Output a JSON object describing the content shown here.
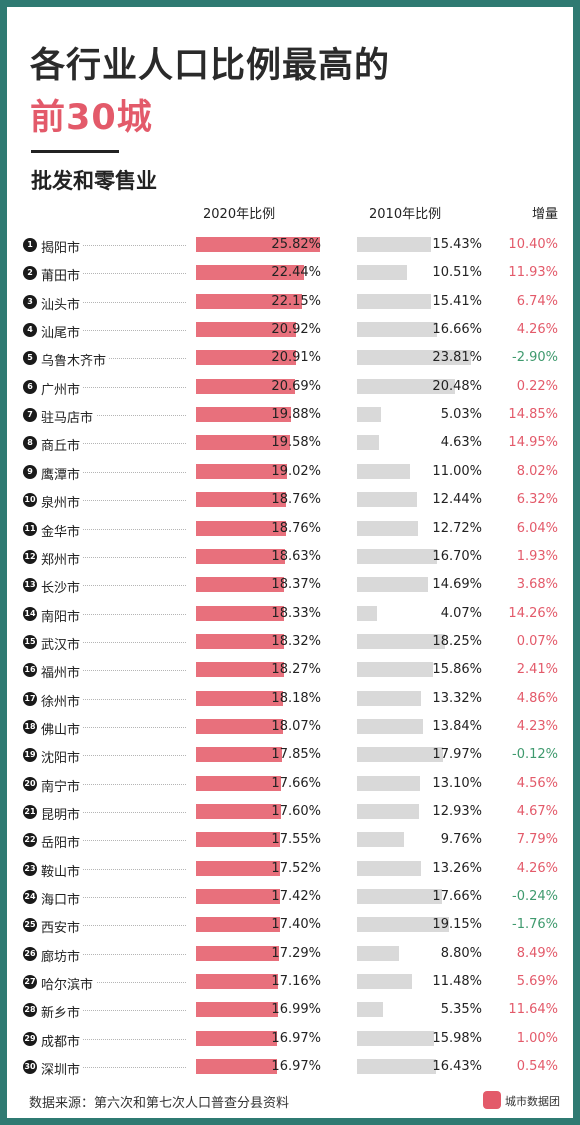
{
  "header": {
    "title_line1": "各行业人口比例最高的",
    "title_line2": "前30城",
    "subtitle": "批发和零售业"
  },
  "columns": {
    "col2020": "2020年比例",
    "col2010": "2010年比例",
    "increase": "增量"
  },
  "colors": {
    "bar2020": "#e8707c",
    "bar2010": "#d9d9d9",
    "positive": "#e35a6a",
    "negative": "#3f9a6e",
    "frame": "#2f7a72"
  },
  "footer": {
    "source": "数据来源：第六次和第七次人口普查分县资料",
    "brand": "城市数据团"
  },
  "chart_data": {
    "type": "bar",
    "rows": [
      {
        "rank": "1",
        "city": "揭阳市",
        "v2020": "25.82%",
        "v2010": "15.43%",
        "inc": "10.40%"
      },
      {
        "rank": "2",
        "city": "莆田市",
        "v2020": "22.44%",
        "v2010": "10.51%",
        "inc": "11.93%"
      },
      {
        "rank": "3",
        "city": "汕头市",
        "v2020": "22.15%",
        "v2010": "15.41%",
        "inc": "6.74%"
      },
      {
        "rank": "4",
        "city": "汕尾市",
        "v2020": "20.92%",
        "v2010": "16.66%",
        "inc": "4.26%"
      },
      {
        "rank": "5",
        "city": "乌鲁木齐市",
        "v2020": "20.91%",
        "v2010": "23.81%",
        "inc": "-2.90%"
      },
      {
        "rank": "6",
        "city": "广州市",
        "v2020": "20.69%",
        "v2010": "20.48%",
        "inc": "0.22%"
      },
      {
        "rank": "7",
        "city": "驻马店市",
        "v2020": "19.88%",
        "v2010": "5.03%",
        "inc": "14.85%"
      },
      {
        "rank": "8",
        "city": "商丘市",
        "v2020": "19.58%",
        "v2010": "4.63%",
        "inc": "14.95%"
      },
      {
        "rank": "9",
        "city": "鹰潭市",
        "v2020": "19.02%",
        "v2010": "11.00%",
        "inc": "8.02%"
      },
      {
        "rank": "10",
        "city": "泉州市",
        "v2020": "18.76%",
        "v2010": "12.44%",
        "inc": "6.32%"
      },
      {
        "rank": "11",
        "city": "金华市",
        "v2020": "18.76%",
        "v2010": "12.72%",
        "inc": "6.04%"
      },
      {
        "rank": "12",
        "city": "郑州市",
        "v2020": "18.63%",
        "v2010": "16.70%",
        "inc": "1.93%"
      },
      {
        "rank": "13",
        "city": "长沙市",
        "v2020": "18.37%",
        "v2010": "14.69%",
        "inc": "3.68%"
      },
      {
        "rank": "14",
        "city": "南阳市",
        "v2020": "18.33%",
        "v2010": "4.07%",
        "inc": "14.26%"
      },
      {
        "rank": "15",
        "city": "武汉市",
        "v2020": "18.32%",
        "v2010": "18.25%",
        "inc": "0.07%"
      },
      {
        "rank": "16",
        "city": "福州市",
        "v2020": "18.27%",
        "v2010": "15.86%",
        "inc": "2.41%"
      },
      {
        "rank": "17",
        "city": "徐州市",
        "v2020": "18.18%",
        "v2010": "13.32%",
        "inc": "4.86%"
      },
      {
        "rank": "18",
        "city": "佛山市",
        "v2020": "18.07%",
        "v2010": "13.84%",
        "inc": "4.23%"
      },
      {
        "rank": "19",
        "city": "沈阳市",
        "v2020": "17.85%",
        "v2010": "17.97%",
        "inc": "-0.12%"
      },
      {
        "rank": "20",
        "city": "南宁市",
        "v2020": "17.66%",
        "v2010": "13.10%",
        "inc": "4.56%"
      },
      {
        "rank": "21",
        "city": "昆明市",
        "v2020": "17.60%",
        "v2010": "12.93%",
        "inc": "4.67%"
      },
      {
        "rank": "22",
        "city": "岳阳市",
        "v2020": "17.55%",
        "v2010": "9.76%",
        "inc": "7.79%"
      },
      {
        "rank": "23",
        "city": "鞍山市",
        "v2020": "17.52%",
        "v2010": "13.26%",
        "inc": "4.26%"
      },
      {
        "rank": "24",
        "city": "海口市",
        "v2020": "17.42%",
        "v2010": "17.66%",
        "inc": "-0.24%"
      },
      {
        "rank": "25",
        "city": "西安市",
        "v2020": "17.40%",
        "v2010": "19.15%",
        "inc": "-1.76%"
      },
      {
        "rank": "26",
        "city": "廊坊市",
        "v2020": "17.29%",
        "v2010": "8.80%",
        "inc": "8.49%"
      },
      {
        "rank": "27",
        "city": "哈尔滨市",
        "v2020": "17.16%",
        "v2010": "11.48%",
        "inc": "5.69%"
      },
      {
        "rank": "28",
        "city": "新乡市",
        "v2020": "16.99%",
        "v2010": "5.35%",
        "inc": "11.64%"
      },
      {
        "rank": "29",
        "city": "成都市",
        "v2020": "16.97%",
        "v2010": "15.98%",
        "inc": "1.00%"
      },
      {
        "rank": "30",
        "city": "深圳市",
        "v2020": "16.97%",
        "v2010": "16.43%",
        "inc": "0.54%"
      }
    ]
  }
}
